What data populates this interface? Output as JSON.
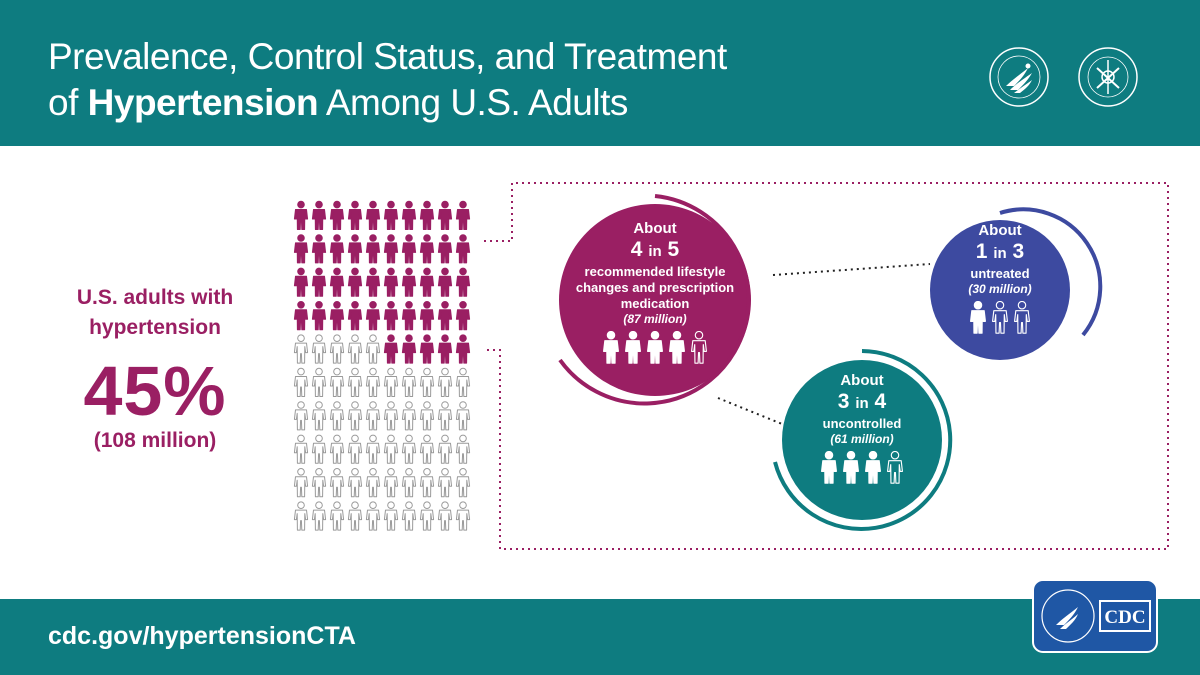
{
  "header": {
    "title_line1": "Prevalence, Control Status, and Treatment",
    "title_line2_pre": "of ",
    "title_line2_bold": "Hypertension",
    "title_line2_post": " Among U.S. Adults",
    "seal_hhs_icon": "hhs-seal-icon",
    "seal_phs_icon": "public-health-service-seal-icon"
  },
  "stat": {
    "label_line1": "U.S. adults with",
    "label_line2": "hypertension",
    "percent": "45%",
    "count": "(108 million)",
    "pictogram": {
      "total": 100,
      "highlighted": 45,
      "highlight_color": "#9a1f63",
      "icon": "person-icon"
    }
  },
  "circles": [
    {
      "id": "lifestyle",
      "about": "About",
      "ratio_a": "4",
      "ratio_in": "in",
      "ratio_b": "5",
      "desc_lines": [
        "recommended lifestyle",
        "changes and prescription",
        "medication"
      ],
      "count": "(87 million)",
      "filled": 4,
      "total": 5,
      "color": "#9a1f63"
    },
    {
      "id": "untreated",
      "about": "About",
      "ratio_a": "1",
      "ratio_in": "in",
      "ratio_b": "3",
      "desc_lines": [
        "untreated"
      ],
      "count": "(30 million)",
      "filled": 1,
      "total": 3,
      "color": "#3d4aa0"
    },
    {
      "id": "uncontrolled",
      "about": "About",
      "ratio_a": "3",
      "ratio_in": "in",
      "ratio_b": "4",
      "desc_lines": [
        "uncontrolled"
      ],
      "count": "(61 million)",
      "filled": 3,
      "total": 4,
      "color": "#0e7c80"
    }
  ],
  "footer": {
    "url": "cdc.gov/hypertensionCTA",
    "logo_icon": "cdc-logo-icon",
    "logo_text": "CDC"
  }
}
